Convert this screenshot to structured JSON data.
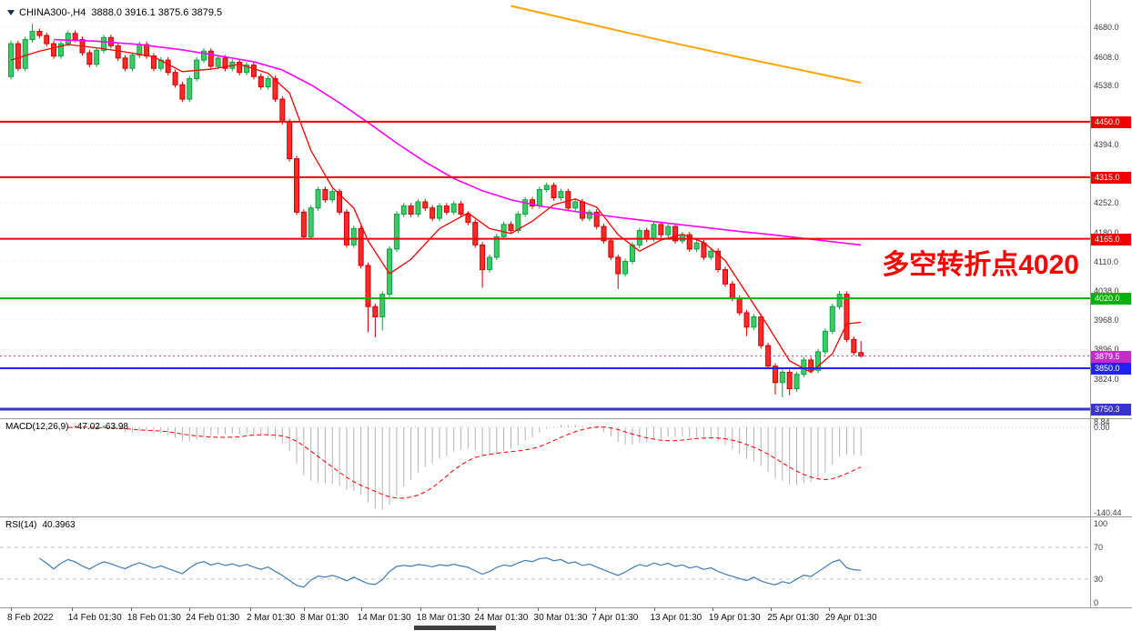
{
  "window": {
    "title": "CHINA300-,H4",
    "ohlc_display": "3888.0 3916.1 3875.6 3879.5"
  },
  "annotation": {
    "text": "多空转折点4020",
    "color": "#FF0000"
  },
  "panels": {
    "macd": {
      "label": "MACD(12,26,9)",
      "values": "-47.02 -63.98",
      "scale_max": 8.84,
      "scale_min": -140.44,
      "axis": [
        8.84,
        0,
        -140.44
      ],
      "histogram_color": "#b4b4b4",
      "signal_color": "#ff0000"
    },
    "rsi": {
      "label": "RSI(14)",
      "value": "40.3963",
      "axis_labels": [
        100,
        70,
        30,
        0
      ],
      "levels": [
        70,
        30
      ],
      "line_color": "#3f7cba"
    }
  },
  "chart_data": {
    "type": "candlestick",
    "symbol": "CHINA300-",
    "timeframe": "H4",
    "last_ohlc": {
      "open": 3888.0,
      "high": 3916.1,
      "low": 3875.6,
      "close": 3879.5
    },
    "price_axis": {
      "min": 3750.3,
      "max": 4680.0,
      "ticks": [
        "4680.0",
        "4608.0",
        "4538.0",
        "4394.0",
        "4252.0",
        "4180.0",
        "4110.0",
        "4038.0",
        "3968.0",
        "3896.0",
        "3824.0"
      ]
    },
    "time_axis": {
      "labels": [
        "8 Feb 2022",
        "14 Feb 01:30",
        "18 Feb 01:30",
        "24 Feb 01:30",
        "2 Mar 01:30",
        "8 Mar 01:30",
        "14 Mar 01:30",
        "18 Mar 01:30",
        "24 Mar 01:30",
        "30 Mar 01:30",
        "7 Apr 01:30",
        "13 Apr 01:30",
        "19 Apr 01:30",
        "25 Apr 01:30",
        "29 Apr 01:30"
      ],
      "indices": [
        0,
        8.5,
        16.8,
        25,
        33.5,
        41,
        49,
        57.3,
        65.4,
        73.7,
        81.8,
        90,
        98.2,
        106.4,
        114.5
      ]
    },
    "first_open": 4560,
    "default_wick": 7,
    "closes": [
      4640,
      4580,
      4650,
      4670,
      4660,
      4640,
      4610,
      4640,
      4665,
      4650,
      4618,
      4590,
      4624,
      4655,
      4635,
      4605,
      4580,
      4612,
      4638,
      4610,
      4580,
      4600,
      4570,
      4540,
      4505,
      4555,
      4600,
      4622,
      4585,
      4605,
      4580,
      4595,
      4570,
      4588,
      4560,
      4535,
      4555,
      4505,
      4450,
      4360,
      4230,
      4170,
      4240,
      4285,
      4260,
      4280,
      4230,
      4150,
      4190,
      4100,
      4000,
      3975,
      4030,
      4140,
      4225,
      4245,
      4225,
      4255,
      4240,
      4215,
      4245,
      4230,
      4250,
      4225,
      4205,
      4150,
      4090,
      4120,
      4170,
      4200,
      4185,
      4225,
      4260,
      4245,
      4285,
      4295,
      4265,
      4280,
      4240,
      4255,
      4215,
      4230,
      4195,
      4160,
      4120,
      4080,
      4110,
      4150,
      4185,
      4165,
      4200,
      4175,
      4195,
      4160,
      4175,
      4140,
      4155,
      4120,
      4135,
      4090,
      4055,
      4020,
      3985,
      3950,
      3975,
      3905,
      3855,
      3815,
      3840,
      3800,
      3835,
      3870,
      3845,
      3890,
      3940,
      4000,
      4030,
      3920,
      3888,
      3879.5
    ],
    "wick_overrides": {
      "3": {
        "high": 4688
      },
      "50": {
        "low": 3938
      },
      "51": {
        "low": 3925
      },
      "52": {
        "low": 3942
      },
      "66": {
        "low": 4046
      },
      "85": {
        "low": 4043
      },
      "103": {
        "low": 3928
      },
      "107": {
        "low": 3786
      },
      "108": {
        "low": 3779
      },
      "109": {
        "low": 3784
      },
      "116": {
        "high": 4038
      },
      "119": {
        "high": 3916.1,
        "low": 3875.6
      }
    },
    "candle_colors": {
      "up_fill": "#3fcb63",
      "up_stroke": "#0e9e47",
      "down_fill": "#ff2b2b",
      "down_stroke": "#cc0000"
    },
    "overlays": [
      {
        "name": "ma-long-orange",
        "color": "#ffa500",
        "width": 2,
        "points": [
          [
            70,
            4732
          ],
          [
            78,
            4700
          ],
          [
            86,
            4668
          ],
          [
            94,
            4637
          ],
          [
            102,
            4607
          ],
          [
            110,
            4578
          ],
          [
            119,
            4545
          ]
        ]
      },
      {
        "name": "ma-slow-magenta",
        "color": "#ff00ff",
        "width": 1.6,
        "points": [
          [
            6,
            4650
          ],
          [
            12,
            4646
          ],
          [
            18,
            4638
          ],
          [
            24,
            4625
          ],
          [
            30,
            4608
          ],
          [
            34,
            4596
          ],
          [
            38,
            4576
          ],
          [
            42,
            4540
          ],
          [
            46,
            4496
          ],
          [
            50,
            4448
          ],
          [
            54,
            4398
          ],
          [
            58,
            4352
          ],
          [
            62,
            4312
          ],
          [
            66,
            4282
          ],
          [
            70,
            4260
          ],
          [
            74,
            4245
          ],
          [
            78,
            4234
          ],
          [
            82,
            4224
          ],
          [
            86,
            4215
          ],
          [
            90,
            4207
          ],
          [
            94,
            4199
          ],
          [
            98,
            4191
          ],
          [
            102,
            4183
          ],
          [
            106,
            4176
          ],
          [
            110,
            4168
          ],
          [
            114,
            4160
          ],
          [
            119,
            4150
          ]
        ]
      },
      {
        "name": "ma-fast-red",
        "color": "#ff0000",
        "width": 1.3,
        "points": [
          [
            0,
            4600
          ],
          [
            4,
            4622
          ],
          [
            8,
            4638
          ],
          [
            12,
            4630
          ],
          [
            16,
            4620
          ],
          [
            20,
            4608
          ],
          [
            24,
            4572
          ],
          [
            28,
            4578
          ],
          [
            32,
            4590
          ],
          [
            36,
            4568
          ],
          [
            39,
            4520
          ],
          [
            42,
            4380
          ],
          [
            45,
            4290
          ],
          [
            48,
            4240
          ],
          [
            50,
            4160
          ],
          [
            53,
            4080
          ],
          [
            56,
            4115
          ],
          [
            60,
            4190
          ],
          [
            64,
            4228
          ],
          [
            67,
            4190
          ],
          [
            70,
            4178
          ],
          [
            73,
            4208
          ],
          [
            76,
            4248
          ],
          [
            79,
            4262
          ],
          [
            82,
            4242
          ],
          [
            85,
            4175
          ],
          [
            88,
            4135
          ],
          [
            91,
            4162
          ],
          [
            94,
            4176
          ],
          [
            97,
            4156
          ],
          [
            100,
            4112
          ],
          [
            103,
            4032
          ],
          [
            106,
            3952
          ],
          [
            109,
            3868
          ],
          [
            112,
            3840
          ],
          [
            115,
            3885
          ],
          [
            117,
            3958
          ],
          [
            119,
            3962
          ]
        ]
      }
    ],
    "hlines": [
      {
        "price": 4450.0,
        "label": "4450.0",
        "color": "#ee0000",
        "width": 2
      },
      {
        "price": 4315.0,
        "label": "4315.0",
        "color": "#ee0000",
        "width": 2
      },
      {
        "price": 4165.0,
        "label": "4165.0",
        "color": "#ee0000",
        "width": 2
      },
      {
        "price": 4020.0,
        "label": "4020.0",
        "color": "#00b200",
        "width": 2
      },
      {
        "price": 3850.0,
        "label": "3850.0",
        "color": "#2222ee",
        "width": 2
      },
      {
        "price": 3750.3,
        "label": "3750.3",
        "color": "#3a33c8",
        "width": 3
      }
    ],
    "price_line": {
      "price": 3879.5,
      "label": "3879.5",
      "color": "#c72bc7"
    }
  }
}
